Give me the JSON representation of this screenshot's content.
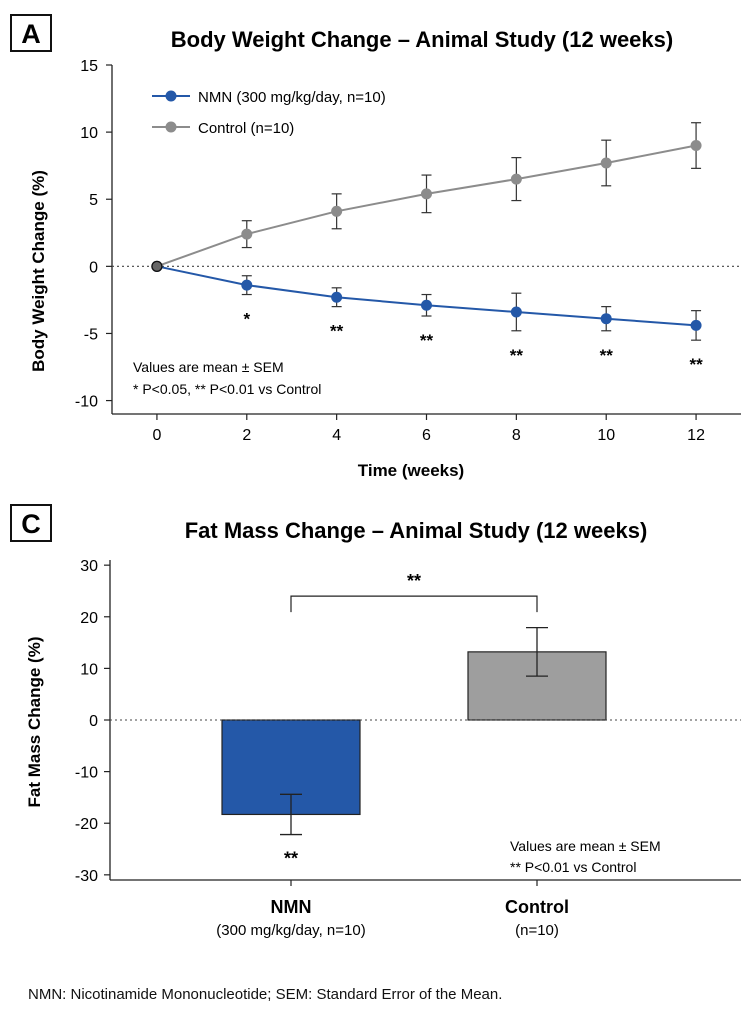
{
  "panels": [
    {
      "letter": "A",
      "chart_data": {
        "type": "line",
        "title": "Body Weight Change – Animal Study (12 weeks)",
        "xlabel": "Time (weeks)",
        "ylabel": "Body Weight Change (%)",
        "x": [
          0,
          2,
          4,
          6,
          8,
          10,
          12
        ],
        "xlim": [
          -1,
          13
        ],
        "ylim": [
          -11,
          15
        ],
        "xticks": [
          0,
          2,
          4,
          6,
          8,
          10,
          12
        ],
        "yticks": [
          -10,
          -5,
          0,
          5,
          10,
          15
        ],
        "zero_line": true,
        "legend_position": "top-left",
        "series": [
          {
            "name": "NMN (300 mg/kg/day, n=10)",
            "color": "#2458a8",
            "values": [
              0,
              -1.4,
              -2.3,
              -2.9,
              -3.4,
              -3.9,
              -4.4
            ],
            "errors": [
              0,
              0.7,
              0.7,
              0.8,
              1.4,
              0.9,
              1.1
            ],
            "significance": [
              "",
              "*",
              "**",
              "**",
              "**",
              "**",
              "**"
            ]
          },
          {
            "name": "Control (n=10)",
            "color": "#8c8c8c",
            "values": [
              0,
              2.4,
              4.1,
              5.4,
              6.5,
              7.7,
              9.0
            ],
            "errors": [
              0,
              1.0,
              1.3,
              1.4,
              1.6,
              1.7,
              1.7
            ]
          }
        ],
        "annotation_lines": [
          "Values are mean ± SEM",
          "* P<0.05, ** P<0.01 vs Control"
        ]
      }
    },
    {
      "letter": "C",
      "chart_data": {
        "type": "bar",
        "title": "Fat Mass Change – Animal Study (12 weeks)",
        "xlabel": "",
        "ylabel": "Fat Mass Change (%)",
        "categories": [
          "NMN",
          "Control"
        ],
        "category_sublabels": [
          "(300 mg/kg/day, n=10)",
          "(n=10)"
        ],
        "values": [
          -18.3,
          13.2
        ],
        "errors": [
          3.9,
          4.7
        ],
        "colors": [
          "#2458a8",
          "#9e9e9e"
        ],
        "ylim": [
          -31,
          31
        ],
        "yticks": [
          -30,
          -20,
          -10,
          0,
          10,
          20,
          30
        ],
        "zero_line": true,
        "bar_significance": [
          "**",
          ""
        ],
        "bracket": {
          "from": 0,
          "to": 1,
          "label": "**",
          "y": 24
        },
        "annotation_lines": [
          "Values are mean ± SEM",
          "** P<0.01 vs Control"
        ]
      }
    }
  ],
  "footnote": "NMN: Nicotinamide Mononucleotide; SEM: Standard Error of the Mean."
}
